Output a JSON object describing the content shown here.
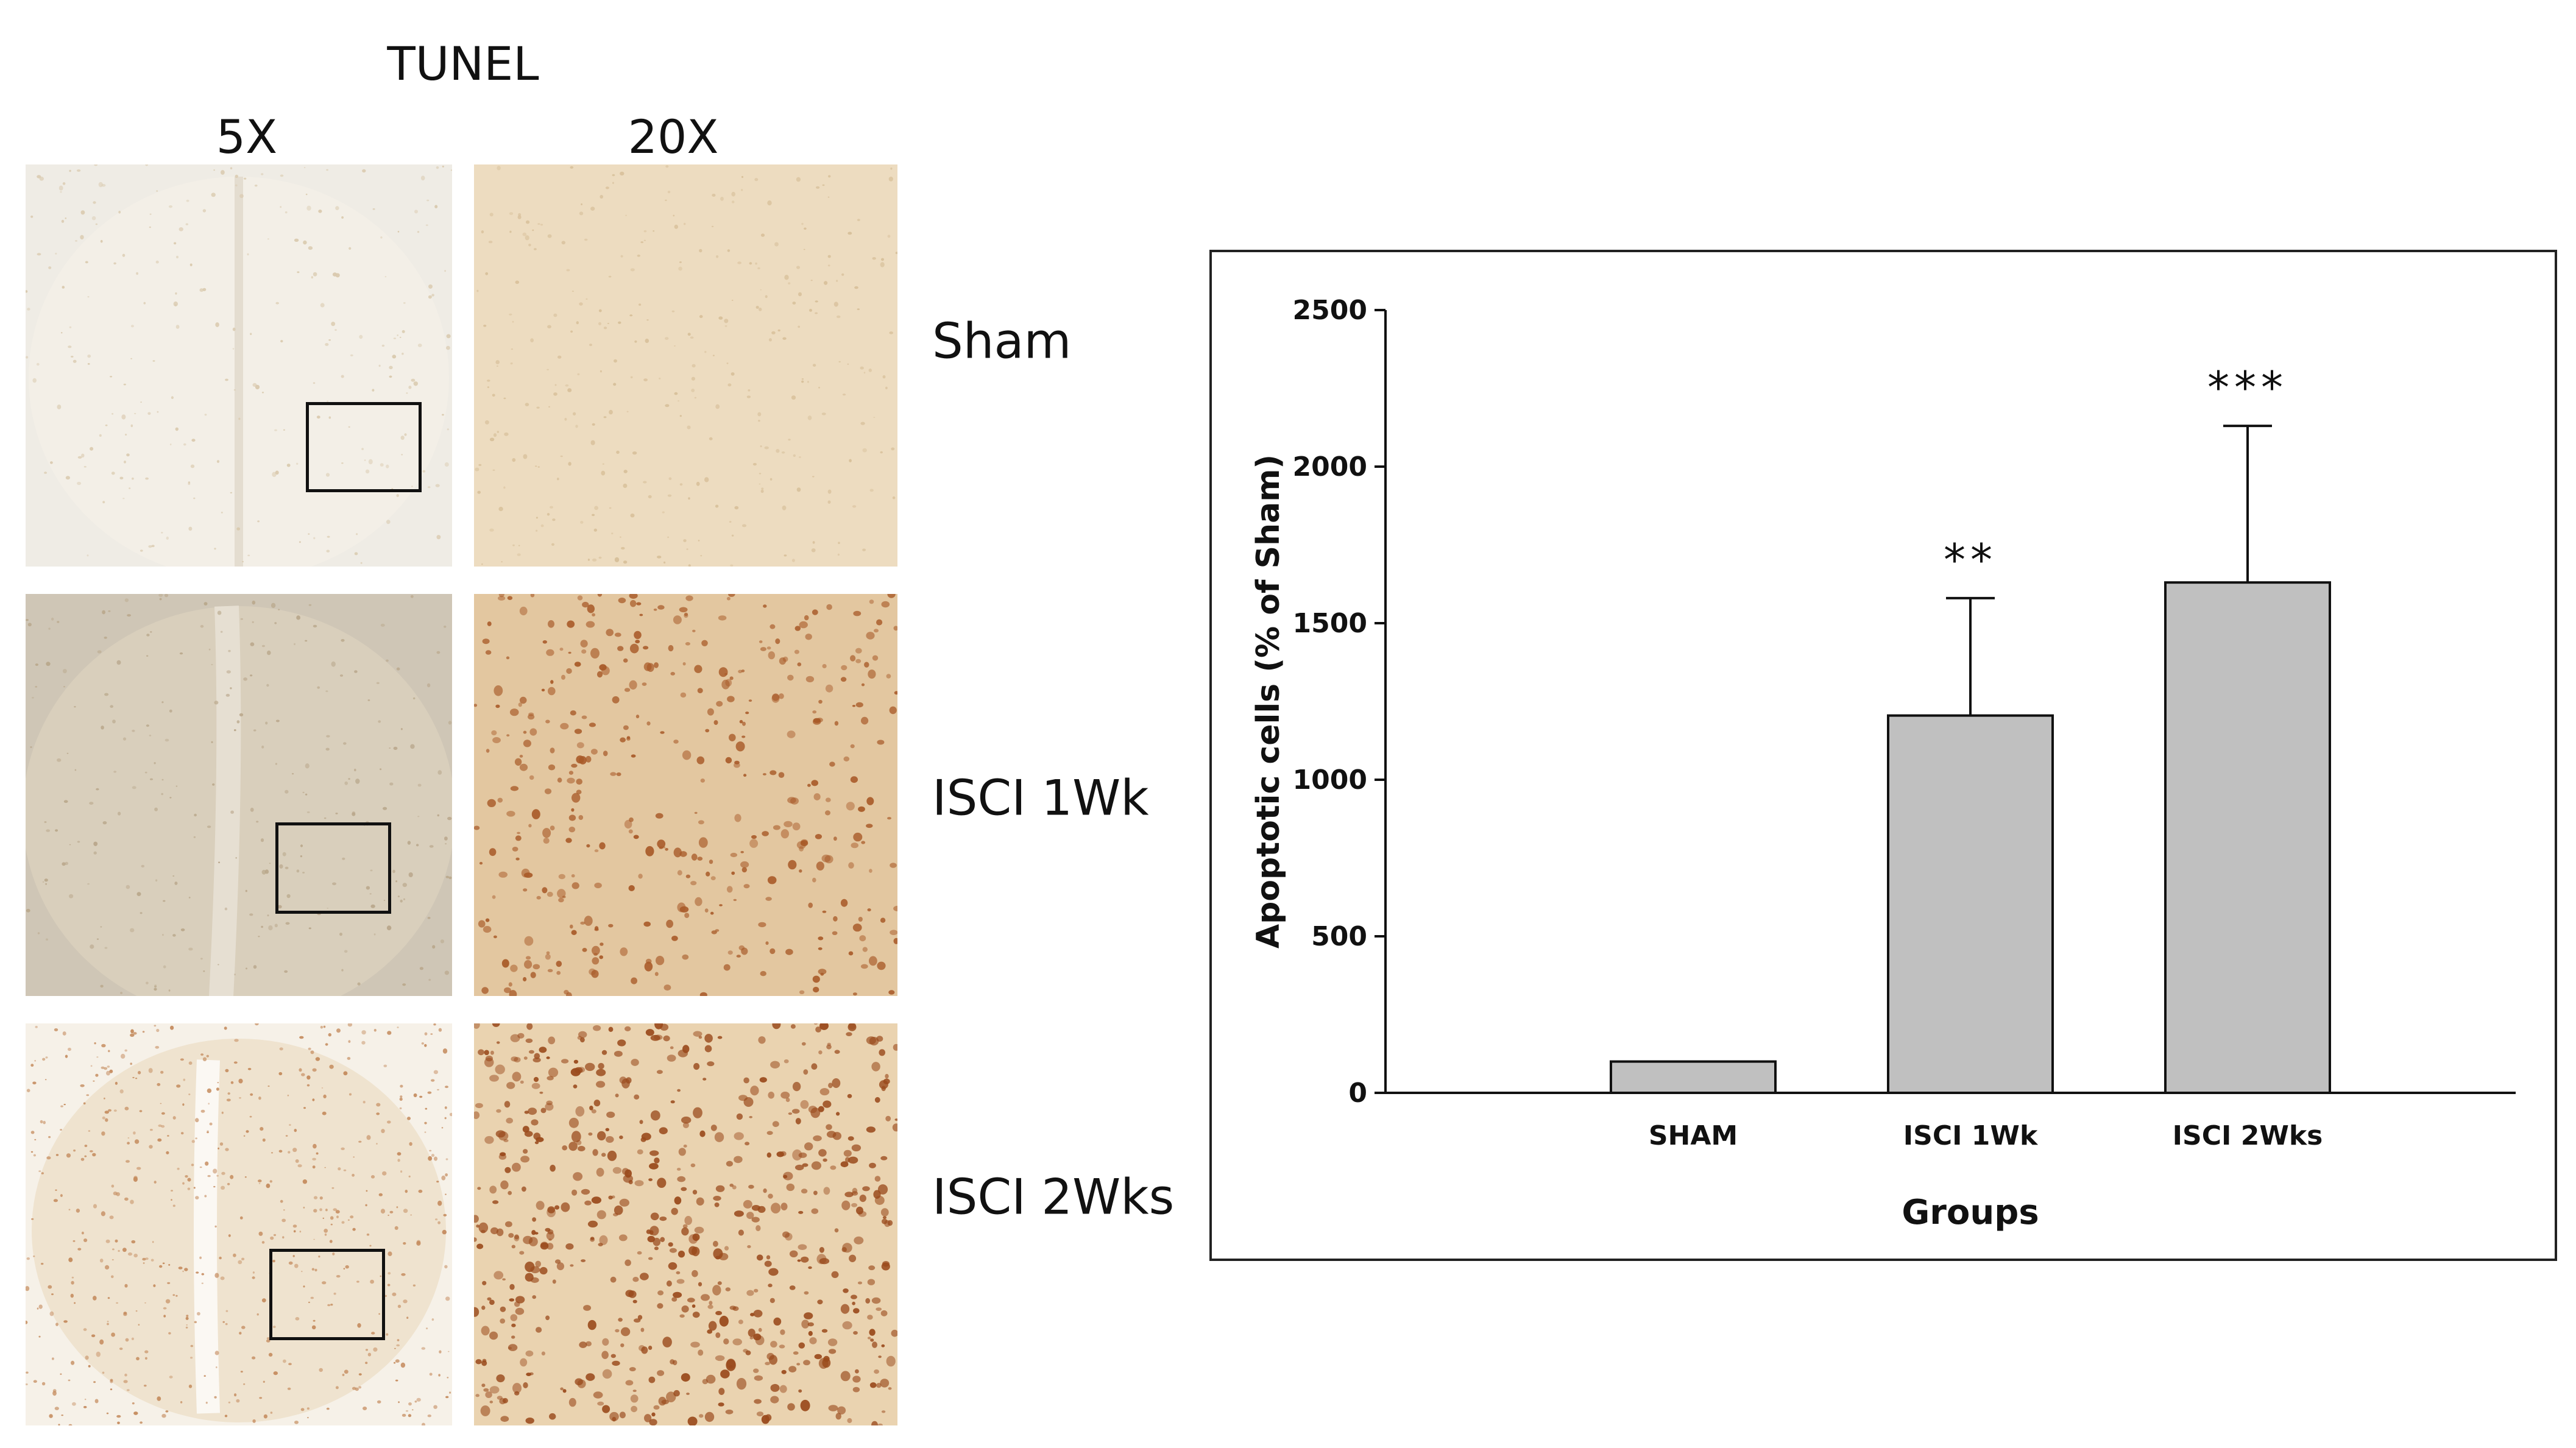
{
  "figure": {
    "stain_title": "TUNEL",
    "columns": [
      "5X",
      "20X"
    ],
    "rows": [
      "Sham",
      "ISCI 1Wk",
      "ISCI 2Wks"
    ]
  },
  "chart_data": {
    "type": "bar",
    "categories": [
      "SHAM",
      "ISCI 1Wk",
      "ISCI 2Wks"
    ],
    "values": [
      100,
      1205,
      1630
    ],
    "errors": [
      0,
      375,
      500
    ],
    "significance": [
      "",
      "**",
      "***"
    ],
    "title": "",
    "xlabel": "Groups",
    "ylabel": "Apoptotic cells (% of Sham)",
    "ylim": [
      0,
      2500
    ],
    "yticks": [
      0,
      500,
      1000,
      1500,
      2000,
      2500
    ],
    "grid": false,
    "legend": "none",
    "bar_color": "#c0c0c0"
  },
  "colors": {
    "sham_tissue": "#ece4d6",
    "isci1_tissue": "#d8ccb6",
    "isci2_tissue": "#eadfcb",
    "stain_brown": "#9a4a1c"
  }
}
